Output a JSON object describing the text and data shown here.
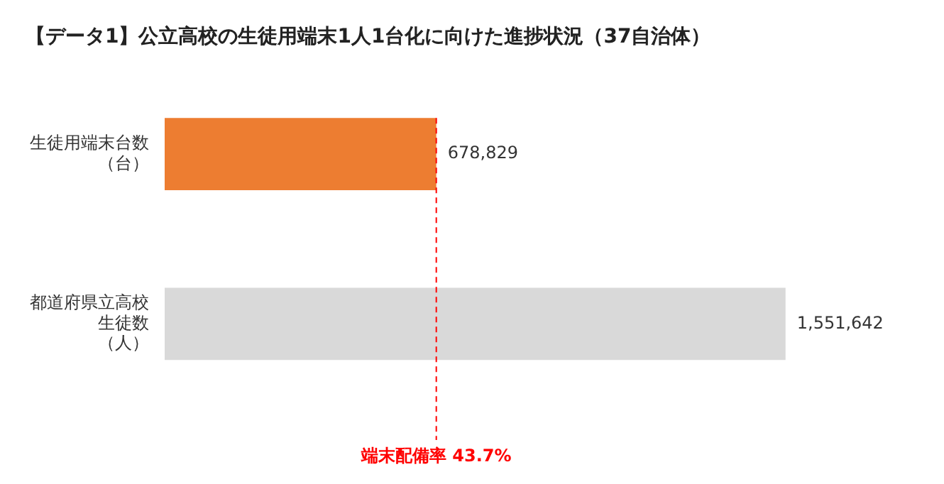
{
  "chart_data": {
    "type": "bar",
    "orientation": "horizontal",
    "title": "【データ1】公立高校の生徒用端末1人1台化に向けた進捗状況（37自治体）",
    "categories": [
      "生徒用端末台数（台）",
      "都道府県立高校生徒数（人）"
    ],
    "values": [
      678829,
      1551642
    ],
    "colors": [
      "#ed7d31",
      "#d9d9d9"
    ],
    "value_labels": [
      "678,829",
      "1,551,642"
    ],
    "tick_labels": "y",
    "grid": false,
    "legend": false,
    "ref_lines": [
      {
        "axis": "x",
        "value": 678829,
        "label": "端末配備率 43.7%",
        "color": "#ff0000",
        "line_style": "dashed"
      }
    ]
  }
}
